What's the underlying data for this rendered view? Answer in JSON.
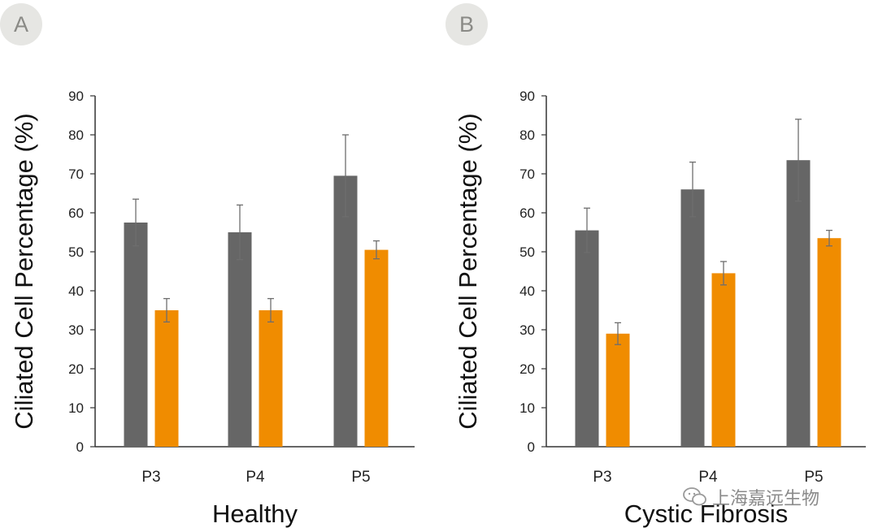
{
  "panels": [
    {
      "label": "A"
    },
    {
      "label": "B"
    }
  ],
  "colors": {
    "series1": "#666666",
    "series2": "#f08c00",
    "error": "#6e6e6e",
    "axis": "#333333"
  },
  "watermark": {
    "text": "上海嘉远生物"
  },
  "chart_data": [
    {
      "type": "bar",
      "title": "",
      "xlabel": "Healthy",
      "ylabel": "Ciliated Cell Percentage (%)",
      "categories": [
        "P3",
        "P4",
        "P5"
      ],
      "ylim": [
        0,
        90
      ],
      "yticks": [
        0,
        10,
        20,
        30,
        40,
        50,
        60,
        70,
        80,
        90
      ],
      "grid": false,
      "legend": "none",
      "series": [
        {
          "values": [
            57.5,
            55,
            69.5
          ],
          "errors": [
            6,
            7,
            10.5
          ],
          "color": "#666666"
        },
        {
          "values": [
            35,
            35,
            50.5
          ],
          "errors": [
            3,
            3,
            2.3
          ],
          "color": "#f08c00"
        }
      ]
    },
    {
      "type": "bar",
      "title": "",
      "xlabel": "Cystic Fibrosis",
      "ylabel": "Ciliated Cell Percentage (%)",
      "categories": [
        "P3",
        "P4",
        "P5"
      ],
      "ylim": [
        0,
        90
      ],
      "yticks": [
        0,
        10,
        20,
        30,
        40,
        50,
        60,
        70,
        80,
        90
      ],
      "grid": false,
      "legend": "none",
      "series": [
        {
          "values": [
            55.5,
            66,
            73.5
          ],
          "errors": [
            5.7,
            7,
            10.5
          ],
          "color": "#666666"
        },
        {
          "values": [
            29,
            44.5,
            53.5
          ],
          "errors": [
            2.8,
            3,
            2
          ],
          "color": "#f08c00"
        }
      ]
    }
  ]
}
